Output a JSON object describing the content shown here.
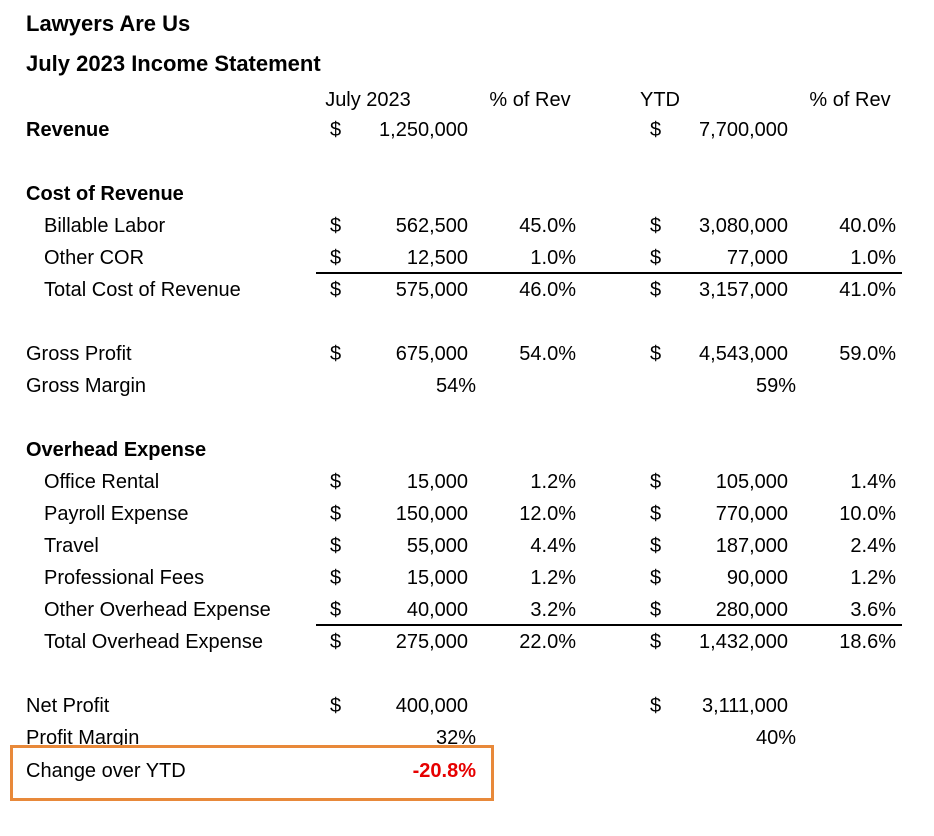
{
  "header": {
    "company": "Lawyers Are Us",
    "title": "July 2023 Income Statement"
  },
  "columns": {
    "month": "July 2023",
    "month_pct": "% of Rev",
    "ytd": "YTD",
    "ytd_pct": "% of Rev"
  },
  "currency_symbol": "$",
  "rows": {
    "revenue": {
      "label": "Revenue",
      "month": "1,250,000",
      "ytd": "7,700,000"
    },
    "cost_of_revenue_heading": "Cost of Revenue",
    "billable_labor": {
      "label": "Billable Labor",
      "month": "562,500",
      "month_pct": "45.0%",
      "ytd": "3,080,000",
      "ytd_pct": "40.0%"
    },
    "other_cor": {
      "label": "Other COR",
      "month": "12,500",
      "month_pct": "1.0%",
      "ytd": "77,000",
      "ytd_pct": "1.0%"
    },
    "total_cor": {
      "label": "Total Cost of Revenue",
      "month": "575,000",
      "month_pct": "46.0%",
      "ytd": "3,157,000",
      "ytd_pct": "41.0%"
    },
    "gross_profit": {
      "label": "Gross Profit",
      "month": "675,000",
      "month_pct": "54.0%",
      "ytd": "4,543,000",
      "ytd_pct": "59.0%"
    },
    "gross_margin": {
      "label": "Gross Margin",
      "month": "54%",
      "ytd": "59%"
    },
    "overhead_heading": "Overhead Expense",
    "office_rental": {
      "label": "Office Rental",
      "month": "15,000",
      "month_pct": "1.2%",
      "ytd": "105,000",
      "ytd_pct": "1.4%"
    },
    "payroll": {
      "label": "Payroll Expense",
      "month": "150,000",
      "month_pct": "12.0%",
      "ytd": "770,000",
      "ytd_pct": "10.0%"
    },
    "travel": {
      "label": "Travel",
      "month": "55,000",
      "month_pct": "4.4%",
      "ytd": "187,000",
      "ytd_pct": "2.4%"
    },
    "professional_fees": {
      "label": "Professional Fees",
      "month": "15,000",
      "month_pct": "1.2%",
      "ytd": "90,000",
      "ytd_pct": "1.2%"
    },
    "other_overhead": {
      "label": "Other Overhead Expense",
      "month": "40,000",
      "month_pct": "3.2%",
      "ytd": "280,000",
      "ytd_pct": "3.6%"
    },
    "total_overhead": {
      "label": "Total Overhead Expense",
      "month": "275,000",
      "month_pct": "22.0%",
      "ytd": "1,432,000",
      "ytd_pct": "18.6%"
    },
    "net_profit": {
      "label": "Net Profit",
      "month": "400,000",
      "ytd": "3,111,000"
    },
    "profit_margin": {
      "label": "Profit Margin",
      "month": "32%",
      "ytd": "40%"
    },
    "change_over_ytd": {
      "label": "Change over YTD",
      "value": "-20.8%"
    }
  },
  "colors": {
    "highlight_border": "#e8893a",
    "negative_value": "#e60000"
  }
}
